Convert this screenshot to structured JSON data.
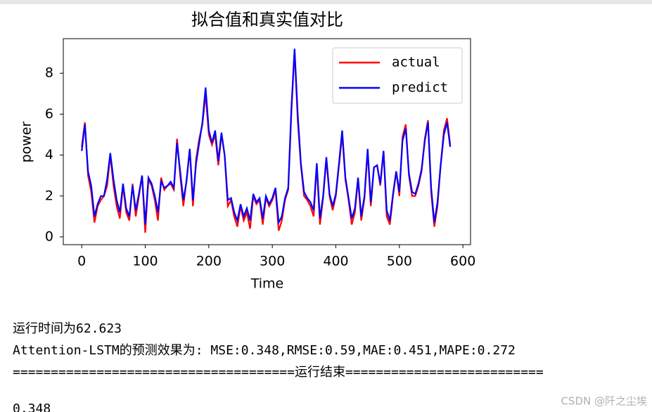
{
  "chart_data": {
    "type": "line",
    "title": "拟合值和真实值对比",
    "x_label": "Time",
    "y_label": "power",
    "x": [
      0,
      5,
      10,
      15,
      20,
      25,
      30,
      35,
      40,
      45,
      50,
      55,
      60,
      65,
      70,
      75,
      80,
      85,
      90,
      95,
      100,
      105,
      110,
      115,
      120,
      125,
      130,
      135,
      140,
      145,
      150,
      155,
      160,
      165,
      170,
      175,
      180,
      185,
      190,
      195,
      200,
      205,
      210,
      215,
      220,
      225,
      230,
      235,
      240,
      245,
      250,
      255,
      260,
      265,
      270,
      275,
      280,
      285,
      290,
      295,
      300,
      305,
      310,
      315,
      320,
      325,
      330,
      335,
      340,
      345,
      350,
      355,
      360,
      365,
      370,
      375,
      380,
      385,
      390,
      395,
      400,
      405,
      410,
      415,
      420,
      425,
      430,
      435,
      440,
      445,
      450,
      455,
      460,
      465,
      470,
      475,
      480,
      485,
      490,
      495,
      500,
      505,
      510,
      515,
      520,
      525,
      530,
      535,
      540,
      545,
      550,
      555,
      560,
      565,
      570,
      575,
      580
    ],
    "series": [
      {
        "name": "actual",
        "color": "#ff0000",
        "values": [
          4.4,
          5.6,
          3.0,
          2.2,
          0.7,
          1.5,
          1.8,
          2.0,
          2.5,
          4.0,
          2.5,
          1.5,
          0.9,
          2.5,
          1.2,
          0.8,
          2.6,
          1.0,
          2.0,
          3.0,
          0.2,
          2.8,
          2.5,
          1.8,
          0.8,
          2.9,
          2.3,
          2.5,
          2.6,
          2.3,
          4.8,
          3.0,
          1.5,
          2.8,
          4.3,
          1.5,
          3.8,
          4.8,
          5.5,
          7.0,
          5.0,
          4.5,
          5.0,
          3.5,
          5.0,
          4.0,
          1.5,
          1.8,
          1.0,
          0.5,
          1.5,
          0.8,
          1.2,
          0.4,
          2.0,
          1.6,
          1.8,
          0.6,
          1.9,
          1.5,
          1.8,
          2.3,
          0.3,
          0.8,
          1.8,
          2.3,
          6.1,
          9.1,
          5.7,
          3.5,
          2.0,
          1.8,
          1.5,
          1.0,
          3.5,
          0.6,
          1.9,
          3.8,
          2.0,
          1.3,
          2.0,
          3.5,
          5.0,
          2.8,
          1.8,
          0.6,
          1.2,
          2.8,
          0.8,
          1.9,
          4.2,
          1.5,
          3.4,
          3.5,
          2.5,
          4.2,
          1.0,
          0.6,
          2.0,
          3.2,
          2.0,
          4.9,
          5.5,
          3.0,
          2.0,
          2.0,
          2.5,
          3.2,
          4.8,
          5.7,
          2.2,
          0.5,
          1.5,
          3.5,
          5.2,
          5.8,
          4.5
        ]
      },
      {
        "name": "predict",
        "color": "#0000ff",
        "values": [
          4.2,
          5.5,
          3.2,
          2.5,
          1.0,
          1.6,
          2.0,
          2.0,
          2.8,
          4.1,
          2.8,
          1.8,
          1.2,
          2.6,
          1.4,
          1.0,
          2.5,
          1.3,
          2.1,
          3.0,
          0.6,
          2.9,
          2.6,
          2.0,
          1.2,
          2.7,
          2.4,
          2.5,
          2.7,
          2.4,
          4.6,
          3.2,
          1.8,
          2.7,
          4.3,
          1.8,
          3.6,
          4.6,
          5.6,
          7.3,
          5.2,
          4.6,
          5.2,
          3.7,
          5.1,
          4.0,
          1.8,
          1.9,
          1.2,
          0.8,
          1.6,
          1.0,
          1.4,
          0.8,
          2.1,
          1.7,
          1.9,
          0.9,
          2.0,
          1.6,
          1.9,
          2.4,
          0.7,
          1.0,
          1.9,
          2.4,
          6.3,
          9.2,
          6.0,
          3.6,
          2.2,
          1.9,
          1.7,
          1.3,
          3.6,
          0.9,
          2.0,
          3.9,
          2.1,
          1.5,
          2.1,
          3.6,
          5.2,
          2.9,
          1.9,
          0.9,
          1.4,
          2.9,
          1.0,
          2.0,
          4.3,
          1.7,
          3.4,
          3.5,
          2.6,
          4.2,
          1.3,
          0.8,
          2.1,
          3.2,
          2.2,
          4.7,
          5.3,
          3.1,
          2.2,
          2.1,
          2.6,
          3.3,
          4.7,
          5.6,
          2.4,
          0.7,
          1.7,
          3.5,
          5.0,
          5.6,
          4.4
        ]
      }
    ],
    "xlim": [
      -29,
      612
    ],
    "ylim": [
      -0.38,
      9.69
    ],
    "xticks": [
      0,
      100,
      200,
      300,
      400,
      500,
      600
    ],
    "yticks": [
      0,
      2,
      4,
      6,
      8
    ],
    "legend": "upper right"
  },
  "output": {
    "lines": [
      "运行时间为62.623",
      "Attention-LSTM的预测效果为: MSE:0.348,RMSE:0.59,MAE:0.451,MAPE:0.272",
      "=====================================运行结束==========================",
      "0.348"
    ]
  },
  "watermark": "CSDN @阡之尘埃"
}
